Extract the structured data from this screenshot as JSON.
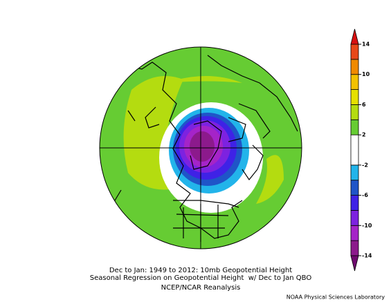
{
  "caption": {
    "line1": "Dec to Jan: 1949 to 2012: 10mb Geopotential Height",
    "line2": "Seasonal Regression on Geopotential Height  w/ Dec to Jan QBO",
    "line3": "NCEP/NCAR Reanalysis"
  },
  "credit": "NOAA Physical Sciences Laboratory",
  "colorbar": {
    "range": [
      -14,
      14
    ],
    "ticks": [
      14,
      10,
      6,
      2,
      -2,
      -6,
      -10,
      -14
    ],
    "bounds": [
      -14,
      -12,
      -10,
      -8,
      -6,
      -4,
      -2,
      2,
      4,
      6,
      8,
      10,
      12,
      14
    ],
    "colors": [
      "#8c1a8c",
      "#a524c8",
      "#7d22e0",
      "#3f22e6",
      "#1f55c8",
      "#22b4ea",
      "#ffffff",
      "#66cc33",
      "#b4dc10",
      "#e6e000",
      "#f2c200",
      "#f08a00",
      "#e84818"
    ],
    "under": "#6e0a6e",
    "over": "#d81010"
  }
}
